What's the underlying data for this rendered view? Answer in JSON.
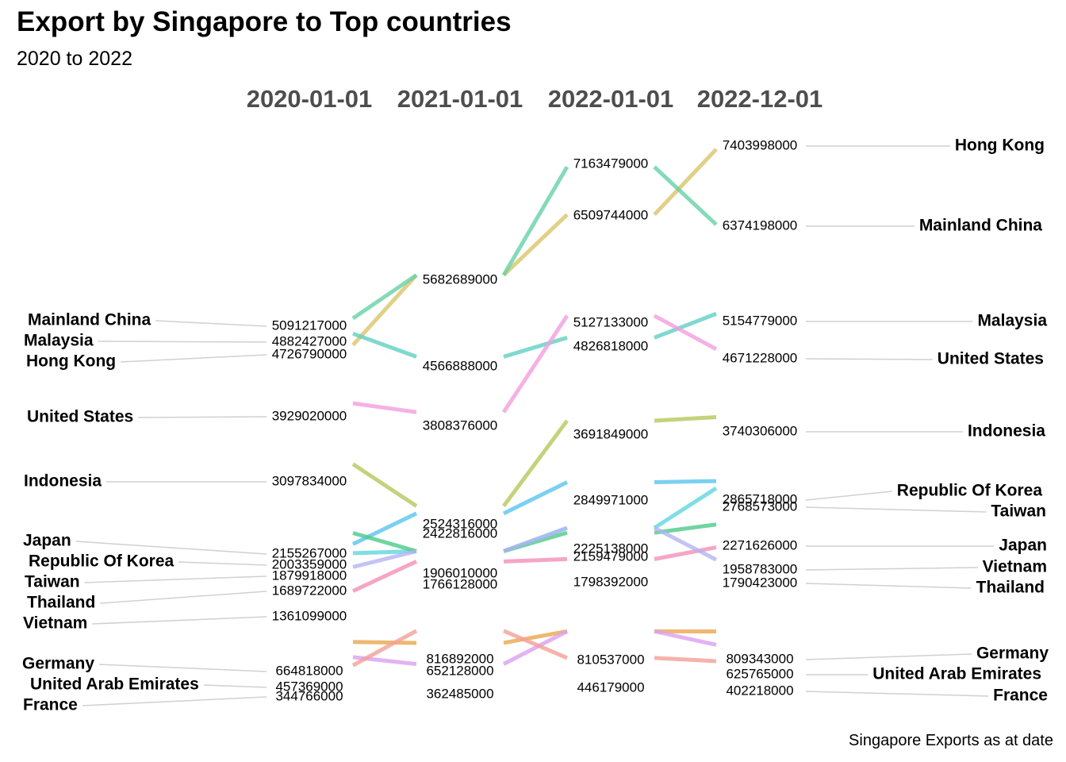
{
  "title": "Export by Singapore to Top countries",
  "subtitle": "2020 to 2022",
  "caption": "Singapore Exports as at date",
  "chart_data": {
    "type": "line",
    "title": "Export by Singapore to Top countries",
    "subtitle": "2020 to 2022",
    "x": [
      "2020-01-01",
      "2021-01-01",
      "2022-01-01",
      "2022-12-01"
    ],
    "ylim": [
      0,
      7600000000
    ],
    "grid": false,
    "legend": "none",
    "series": [
      {
        "name": "Hong Kong",
        "color": "#d9c46a",
        "values": [
          4726790000,
          5682689000,
          6509744000,
          7403998000
        ]
      },
      {
        "name": "Mainland China",
        "color": "#66d1a6",
        "values": [
          5091217000,
          5682689000,
          7163479000,
          6374198000
        ]
      },
      {
        "name": "Malaysia",
        "color": "#5fd0c3",
        "values": [
          4882427000,
          4566888000,
          4826818000,
          5154779000
        ]
      },
      {
        "name": "United States",
        "color": "#f29ee0",
        "values": [
          3929020000,
          3808376000,
          5127133000,
          4671228000
        ]
      },
      {
        "name": "Indonesia",
        "color": "#b5c85a",
        "values": [
          3097834000,
          2524316000,
          3691849000,
          3740306000
        ]
      },
      {
        "name": "Republic Of Korea",
        "color": "#5ac4ef",
        "values": [
          2003359000,
          2422816000,
          2849971000,
          2865718000
        ]
      },
      {
        "name": "Taiwan",
        "color": "#5fd6e0",
        "values": [
          1879918000,
          1906010000,
          2225138000,
          2768573000
        ]
      },
      {
        "name": "Japan",
        "color": "#4cc98a",
        "values": [
          2155267000,
          1906010000,
          2159479000,
          2271626000
        ]
      },
      {
        "name": "Vietnam",
        "color": "#f28fb6",
        "values": [
          1361099000,
          1766128000,
          1798392000,
          1958783000
        ]
      },
      {
        "name": "Thailand",
        "color": "#b4b4f2",
        "values": [
          1689722000,
          1906010000,
          2225138000,
          1790423000
        ]
      },
      {
        "name": "Germany",
        "color": "#e8a64e",
        "values": [
          664818000,
          652128000,
          810537000,
          809343000
        ]
      },
      {
        "name": "United Arab Emirates",
        "color": "#dba0f0",
        "values": [
          457369000,
          362485000,
          810537000,
          625765000
        ]
      },
      {
        "name": "France",
        "color": "#f2a096",
        "values": [
          344766000,
          816892000,
          446179000,
          402218000
        ]
      }
    ],
    "start_labels": [
      {
        "country": "Mainland China",
        "value": "5091217000"
      },
      {
        "country": "Malaysia",
        "value": "4882427000"
      },
      {
        "country": "Hong Kong",
        "value": "4726790000"
      },
      {
        "country": "United States",
        "value": "3929020000"
      },
      {
        "country": "Indonesia",
        "value": "3097834000"
      },
      {
        "country": "Japan",
        "value": "2155267000"
      },
      {
        "country": "Republic Of Korea",
        "value": "2003359000"
      },
      {
        "country": "Taiwan",
        "value": "1879918000"
      },
      {
        "country": "Thailand",
        "value": "1689722000"
      },
      {
        "country": "Vietnam",
        "value": "1361099000"
      },
      {
        "country": "Germany",
        "value": "664818000"
      },
      {
        "country": "United Arab Emirates",
        "value": "457369000"
      },
      {
        "country": "France",
        "value": "344766000"
      }
    ],
    "end_labels": [
      {
        "country": "Hong Kong",
        "value": "7403998000"
      },
      {
        "country": "Mainland China",
        "value": "6374198000"
      },
      {
        "country": "Malaysia",
        "value": "5154779000"
      },
      {
        "country": "United States",
        "value": "4671228000"
      },
      {
        "country": "Indonesia",
        "value": "3740306000"
      },
      {
        "country": "Republic Of Korea",
        "value": "2865718000"
      },
      {
        "country": "Taiwan",
        "value": "2768573000"
      },
      {
        "country": "Japan",
        "value": "2271626000"
      },
      {
        "country": "Vietnam",
        "value": "1958783000"
      },
      {
        "country": "Thailand",
        "value": "1790423000"
      },
      {
        "country": "Germany",
        "value": "809343000"
      },
      {
        "country": "United Arab Emirates",
        "value": "625765000"
      },
      {
        "country": "France",
        "value": "402218000"
      }
    ],
    "middle_labels": [
      {
        "column": 1,
        "value": "5682689000"
      },
      {
        "column": 1,
        "value": "4566888000"
      },
      {
        "column": 1,
        "value": "3808376000"
      },
      {
        "column": 1,
        "value": "2524316000"
      },
      {
        "column": 1,
        "value": "2422816000"
      },
      {
        "column": 1,
        "value": "1906010000"
      },
      {
        "column": 1,
        "value": "1766128000"
      },
      {
        "column": 1,
        "value": "816892000"
      },
      {
        "column": 1,
        "value": "652128000"
      },
      {
        "column": 1,
        "value": "362485000"
      },
      {
        "column": 2,
        "value": "7163479000"
      },
      {
        "column": 2,
        "value": "6509744000"
      },
      {
        "column": 2,
        "value": "5127133000"
      },
      {
        "column": 2,
        "value": "4826818000"
      },
      {
        "column": 2,
        "value": "3691849000"
      },
      {
        "column": 2,
        "value": "2849971000"
      },
      {
        "column": 2,
        "value": "2225138000"
      },
      {
        "column": 2,
        "value": "2159479000"
      },
      {
        "column": 2,
        "value": "1798392000"
      },
      {
        "column": 2,
        "value": "810537000"
      },
      {
        "column": 2,
        "value": "446179000"
      }
    ]
  }
}
